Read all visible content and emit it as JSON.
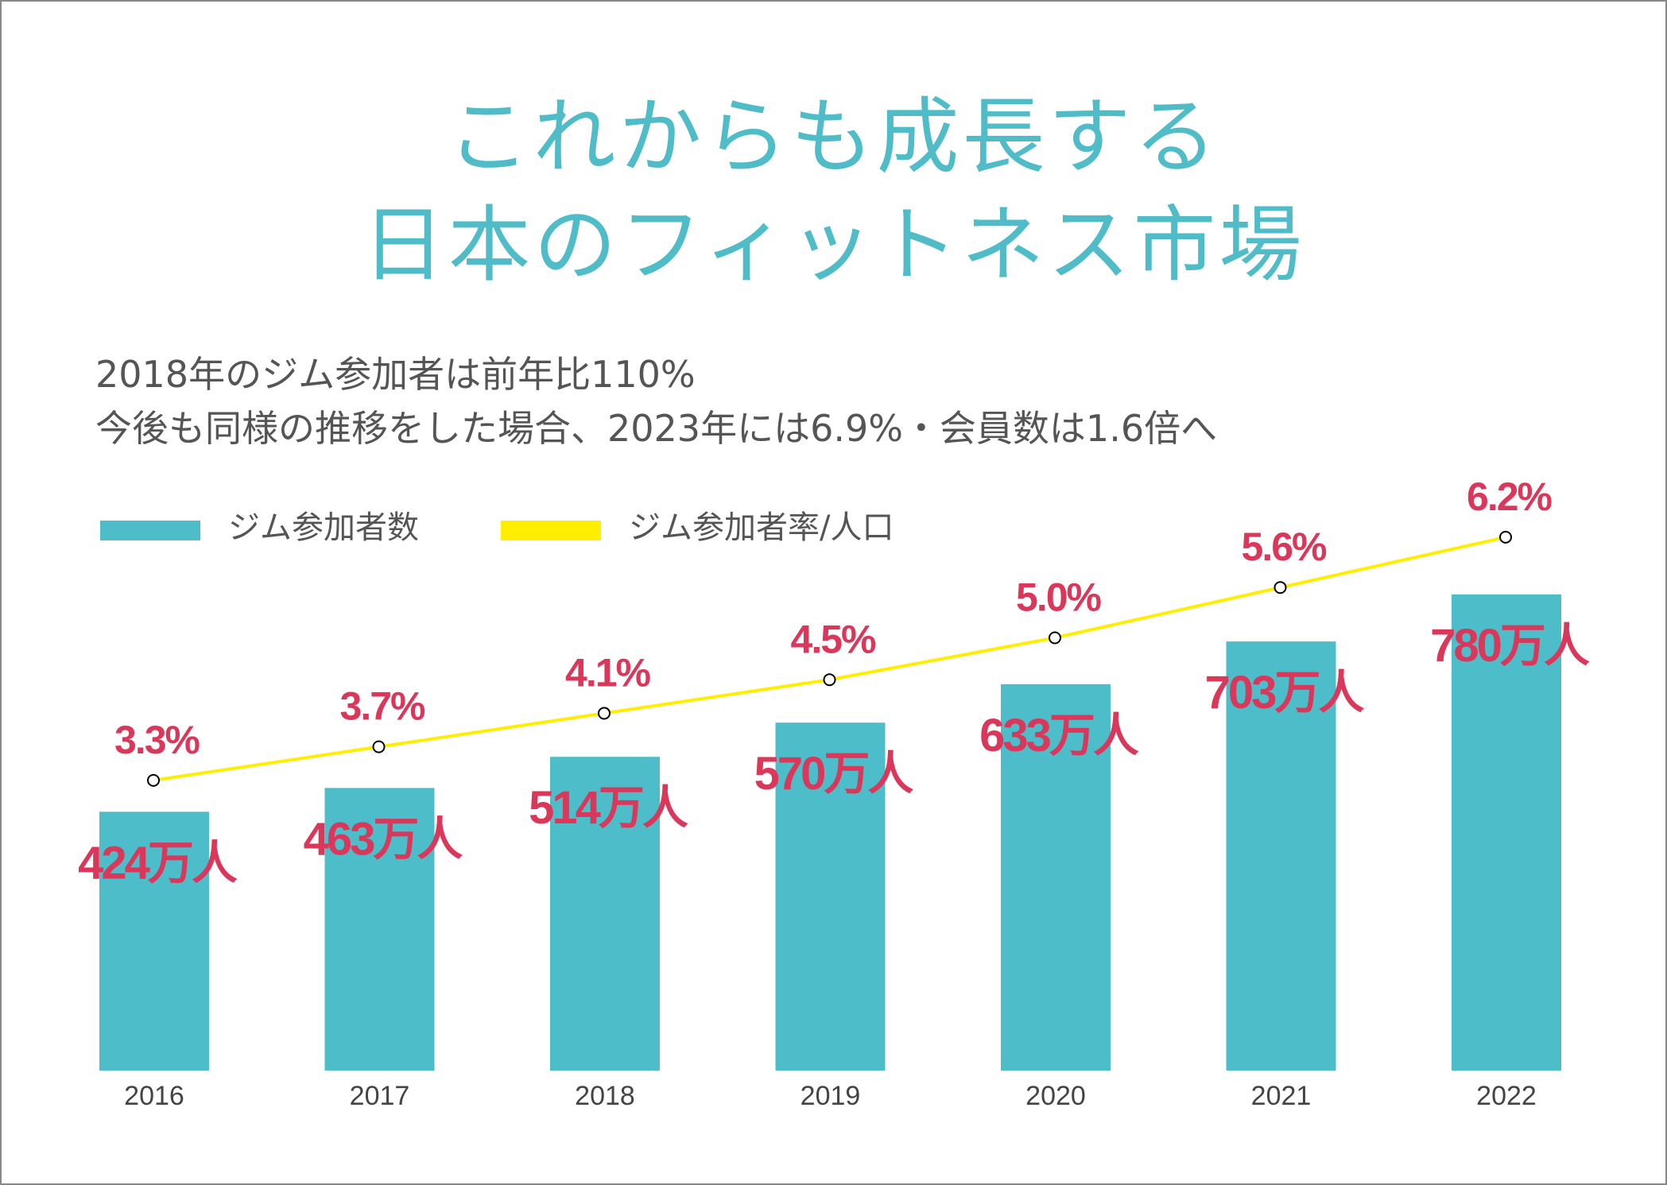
{
  "title": {
    "line1": "これからも成長する",
    "line2": "日本のフィットネス市場"
  },
  "subtitle": {
    "line1": "2018年のジム参加者は前年比110%",
    "line2": "今後も同様の推移をした場合、2023年には6.9%・会員数は1.6倍へ"
  },
  "chart_data": {
    "type": "bar+line",
    "categories": [
      "2016",
      "2017",
      "2018",
      "2019",
      "2020",
      "2021",
      "2022"
    ],
    "series": [
      {
        "name": "ジム参加者数",
        "type": "bar",
        "color": "#4dbdca",
        "values": [
          424,
          463,
          514,
          570,
          633,
          703,
          780
        ],
        "labels": [
          "424万人",
          "463万人",
          "514万人",
          "570万人",
          "633万人",
          "703万人",
          "780万人"
        ]
      },
      {
        "name": "ジム参加者率/人口",
        "type": "line",
        "color": "#ffee00",
        "values": [
          3.3,
          3.7,
          4.1,
          4.5,
          5.0,
          5.6,
          6.2
        ],
        "labels": [
          "3.3%",
          "3.7%",
          "4.1%",
          "4.5%",
          "5.0%",
          "5.6%",
          "6.2%"
        ]
      }
    ],
    "label_color": "#d9385a",
    "legend": "top-left",
    "grid": false
  }
}
